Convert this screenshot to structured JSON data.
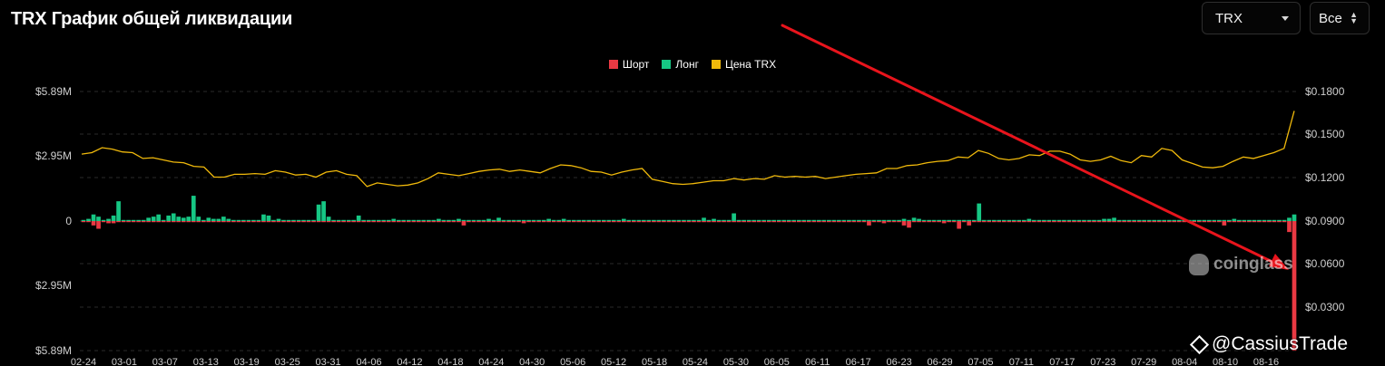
{
  "header": {
    "title": "TRX График общей ликвидации",
    "symbol_select": "TRX",
    "range_select": "Все"
  },
  "colors": {
    "short": "#ea3943",
    "long": "#16c784",
    "price": "#f0b90b",
    "annotation_arrow": "#e8141c"
  },
  "icons": [
    "chevron-down-icon",
    "updown-icon",
    "coinglass-logo-icon",
    "binance-icon"
  ],
  "watermark": {
    "brand": "coinglass",
    "credit": "@CassiusTrade"
  },
  "chart_data": {
    "type": "bar",
    "legend": [
      "Шорт",
      "Лонг",
      "Цена TRX"
    ],
    "legend_position": "top-center",
    "grid": true,
    "y_left_ticks": [
      "$5.89M",
      "$2.95M",
      "0",
      "$2.95M",
      "$5.89M"
    ],
    "y_left_range": [
      -5.89,
      5.89
    ],
    "y_right_ticks": [
      "$0.1800",
      "$0.1500",
      "$0.1200",
      "$0.0900",
      "$0.0600",
      "$0.0300"
    ],
    "y_right_range": [
      0.0,
      0.18
    ],
    "x_ticks": [
      "02-24",
      "03-01",
      "03-07",
      "03-13",
      "03-19",
      "03-25",
      "03-31",
      "04-06",
      "04-12",
      "04-18",
      "04-24",
      "04-30",
      "05-06",
      "05-12",
      "05-18",
      "05-24",
      "05-30",
      "06-05",
      "06-11",
      "06-17",
      "06-23",
      "06-29",
      "07-05",
      "07-11",
      "07-17",
      "07-23",
      "07-29",
      "08-04",
      "08-10",
      "08-16"
    ],
    "series": [
      {
        "name": "Лонг",
        "values": [
          0.05,
          0.1,
          0.3,
          0.2,
          0.05,
          0.1,
          0.25,
          0.9,
          0.05,
          0.05,
          0.05,
          0.05,
          0.05,
          0.15,
          0.2,
          0.3,
          0.05,
          0.25,
          0.35,
          0.2,
          0.15,
          0.2,
          1.15,
          0.2,
          0.05,
          0.15,
          0.1,
          0.1,
          0.2,
          0.1,
          0.05,
          0.05,
          0.05,
          0.05,
          0.05,
          0.05,
          0.3,
          0.25,
          0.05,
          0.1,
          0.05,
          0.05,
          0.05,
          0.05,
          0.05,
          0.05,
          0.05,
          0.75,
          0.9,
          0.2,
          0.05,
          0.05,
          0.05,
          0.05,
          0.05,
          0.25,
          0.05,
          0.05,
          0.05,
          0.05,
          0.05,
          0.05,
          0.1,
          0.05,
          0.05,
          0.05,
          0.05,
          0.05,
          0.05,
          0.05,
          0.05,
          0.1,
          0.05,
          0.05,
          0.05,
          0.1,
          0.05,
          0.05,
          0.05,
          0.05,
          0.05,
          0.1,
          0.05,
          0.15,
          0.05,
          0.05,
          0.05,
          0.05,
          0.05,
          0.05,
          0.05,
          0.05,
          0.05,
          0.1,
          0.05,
          0.05,
          0.1,
          0.05,
          0.05,
          0.05,
          0.05,
          0.05,
          0.05,
          0.05,
          0.05,
          0.05,
          0.05,
          0.05,
          0.1,
          0.05,
          0.05,
          0.05,
          0.05,
          0.05,
          0.05,
          0.05,
          0.05,
          0.05,
          0.05,
          0.05,
          0.05,
          0.05,
          0.05,
          0.05,
          0.15,
          0.05,
          0.1,
          0.05,
          0.05,
          0.05,
          0.35,
          0.05,
          0.05,
          0.05,
          0.05,
          0.05,
          0.05,
          0.05,
          0.05,
          0.05,
          0.05,
          0.05,
          0.05,
          0.05,
          0.05,
          0.05,
          0.05,
          0.05,
          0.05,
          0.05,
          0.05,
          0.05,
          0.05,
          0.05,
          0.05,
          0.05,
          0.05,
          0.05,
          0.05,
          0.05,
          0.05,
          0.05,
          0.05,
          0.05,
          0.1,
          0.05,
          0.15,
          0.1,
          0.05,
          0.05,
          0.05,
          0.05,
          0.05,
          0.05,
          0.05,
          0.05,
          0.05,
          0.05,
          0.05,
          0.8,
          0.05,
          0.05,
          0.05,
          0.05,
          0.05,
          0.05,
          0.05,
          0.05,
          0.05,
          0.1,
          0.05,
          0.05,
          0.05,
          0.05,
          0.05,
          0.05,
          0.05,
          0.05,
          0.05,
          0.05,
          0.05,
          0.05,
          0.05,
          0.05,
          0.1,
          0.1,
          0.15,
          0.05,
          0.05,
          0.05,
          0.05,
          0.05,
          0.05,
          0.05,
          0.05,
          0.05,
          0.05,
          0.05,
          0.05,
          0.05,
          0.05,
          0.05,
          0.05,
          0.05,
          0.05,
          0.05,
          0.05,
          0.05,
          0.05,
          0.05,
          0.1,
          0.05,
          0.05,
          0.05,
          0.05,
          0.05,
          0.05,
          0.05,
          0.05,
          0.05,
          0.05,
          0.15,
          0.3
        ]
      },
      {
        "name": "Шорт",
        "values": [
          -0.05,
          -0.05,
          -0.2,
          -0.35,
          -0.05,
          -0.1,
          -0.1,
          -0.05,
          -0.05,
          -0.05,
          -0.05,
          -0.05,
          -0.05,
          -0.05,
          -0.05,
          -0.05,
          -0.05,
          -0.05,
          -0.05,
          -0.05,
          -0.05,
          -0.05,
          -0.05,
          -0.05,
          -0.05,
          -0.05,
          -0.05,
          -0.05,
          -0.05,
          -0.05,
          -0.05,
          -0.05,
          -0.05,
          -0.05,
          -0.05,
          -0.05,
          -0.05,
          -0.05,
          -0.05,
          -0.05,
          -0.05,
          -0.05,
          -0.05,
          -0.05,
          -0.05,
          -0.05,
          -0.05,
          -0.05,
          -0.05,
          -0.05,
          -0.05,
          -0.05,
          -0.05,
          -0.05,
          -0.05,
          -0.05,
          -0.05,
          -0.05,
          -0.05,
          -0.05,
          -0.05,
          -0.05,
          -0.05,
          -0.05,
          -0.05,
          -0.05,
          -0.05,
          -0.05,
          -0.05,
          -0.05,
          -0.05,
          -0.05,
          -0.05,
          -0.05,
          -0.05,
          -0.05,
          -0.2,
          -0.05,
          -0.05,
          -0.05,
          -0.05,
          -0.05,
          -0.05,
          -0.05,
          -0.05,
          -0.05,
          -0.05,
          -0.05,
          -0.1,
          -0.05,
          -0.05,
          -0.05,
          -0.05,
          -0.05,
          -0.05,
          -0.05,
          -0.05,
          -0.05,
          -0.05,
          -0.05,
          -0.05,
          -0.05,
          -0.05,
          -0.05,
          -0.05,
          -0.05,
          -0.05,
          -0.05,
          -0.05,
          -0.05,
          -0.05,
          -0.05,
          -0.05,
          -0.05,
          -0.05,
          -0.05,
          -0.05,
          -0.05,
          -0.05,
          -0.05,
          -0.05,
          -0.05,
          -0.05,
          -0.05,
          -0.05,
          -0.05,
          -0.05,
          -0.05,
          -0.05,
          -0.05,
          -0.05,
          -0.05,
          -0.05,
          -0.05,
          -0.05,
          -0.05,
          -0.05,
          -0.05,
          -0.05,
          -0.05,
          -0.05,
          -0.05,
          -0.05,
          -0.05,
          -0.05,
          -0.05,
          -0.05,
          -0.05,
          -0.05,
          -0.05,
          -0.05,
          -0.05,
          -0.05,
          -0.05,
          -0.05,
          -0.05,
          -0.05,
          -0.2,
          -0.05,
          -0.05,
          -0.1,
          -0.05,
          -0.05,
          -0.05,
          -0.2,
          -0.3,
          -0.05,
          -0.05,
          -0.05,
          -0.05,
          -0.05,
          -0.05,
          -0.1,
          -0.05,
          -0.05,
          -0.35,
          -0.05,
          -0.2,
          -0.05,
          -0.05,
          -0.05,
          -0.05,
          -0.05,
          -0.05,
          -0.05,
          -0.05,
          -0.05,
          -0.05,
          -0.05,
          -0.05,
          -0.05,
          -0.05,
          -0.05,
          -0.05,
          -0.05,
          -0.05,
          -0.05,
          -0.05,
          -0.05,
          -0.05,
          -0.05,
          -0.05,
          -0.05,
          -0.05,
          -0.05,
          -0.05,
          -0.05,
          -0.05,
          -0.05,
          -0.05,
          -0.05,
          -0.05,
          -0.05,
          -0.05,
          -0.05,
          -0.05,
          -0.05,
          -0.05,
          -0.05,
          -0.05,
          -0.05,
          -0.05,
          -0.05,
          -0.05,
          -0.05,
          -0.05,
          -0.05,
          -0.05,
          -0.2,
          -0.05,
          -0.05,
          -0.05,
          -0.05,
          -0.05,
          -0.05,
          -0.05,
          -0.05,
          -0.05,
          -0.05,
          -0.05,
          -0.05,
          -0.5,
          -5.89,
          -0.4
        ]
      },
      {
        "name": "Цена TRX",
        "values": [
          0.1365,
          0.1375,
          0.141,
          0.14,
          0.138,
          0.1375,
          0.1335,
          0.134,
          0.1325,
          0.131,
          0.1305,
          0.128,
          0.1275,
          0.1205,
          0.1205,
          0.1225,
          0.1225,
          0.123,
          0.1225,
          0.125,
          0.124,
          0.122,
          0.1225,
          0.1205,
          0.124,
          0.125,
          0.1225,
          0.1215,
          0.114,
          0.1165,
          0.1155,
          0.1145,
          0.115,
          0.1165,
          0.1195,
          0.1235,
          0.1225,
          0.1215,
          0.123,
          0.1245,
          0.1255,
          0.126,
          0.1245,
          0.1255,
          0.1245,
          0.1235,
          0.1265,
          0.129,
          0.1285,
          0.127,
          0.1245,
          0.124,
          0.122,
          0.124,
          0.1255,
          0.1265,
          0.119,
          0.1175,
          0.116,
          0.1155,
          0.116,
          0.117,
          0.118,
          0.118,
          0.1195,
          0.1185,
          0.1195,
          0.119,
          0.1215,
          0.1205,
          0.121,
          0.1205,
          0.121,
          0.1195,
          0.1205,
          0.1215,
          0.1225,
          0.123,
          0.1235,
          0.1265,
          0.1265,
          0.1285,
          0.129,
          0.1305,
          0.1315,
          0.132,
          0.1345,
          0.134,
          0.139,
          0.137,
          0.1335,
          0.1325,
          0.1335,
          0.136,
          0.1355,
          0.1385,
          0.1385,
          0.1365,
          0.1325,
          0.1315,
          0.1325,
          0.135,
          0.132,
          0.1305,
          0.1355,
          0.1345,
          0.1405,
          0.139,
          0.1325,
          0.13,
          0.1275,
          0.127,
          0.128,
          0.1315,
          0.1345,
          0.1335,
          0.1355,
          0.1375,
          0.1405,
          0.1665
        ]
      }
    ],
    "annotation": {
      "type": "arrow",
      "color": "#e8141c"
    }
  }
}
